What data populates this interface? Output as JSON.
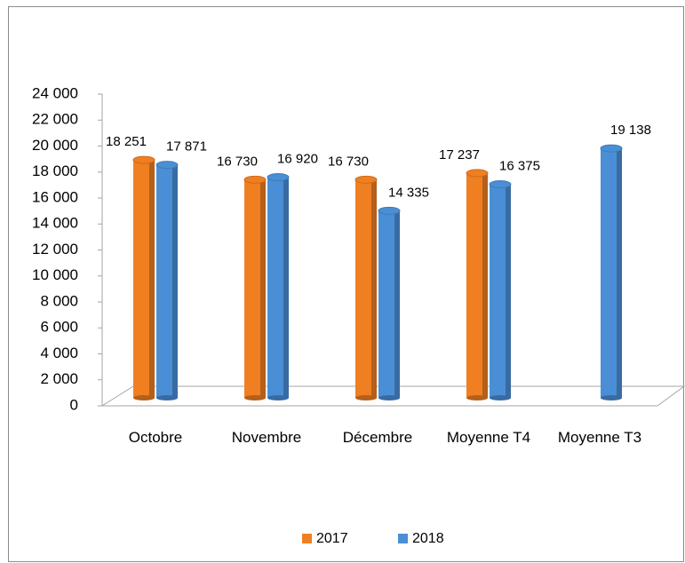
{
  "chart_data": {
    "type": "bar3d",
    "categories": [
      "Octobre",
      "Novembre",
      "Décembre",
      "Moyenne T4",
      "Moyenne T3"
    ],
    "series": [
      {
        "name": "2017",
        "color": "#f07f22",
        "values": [
          18251,
          16730,
          16730,
          17237,
          null
        ],
        "value_labels": [
          "18 251",
          "16 730",
          "16 730",
          "17 237",
          null
        ]
      },
      {
        "name": "2018",
        "color": "#4a8fd6",
        "values": [
          17871,
          16920,
          14335,
          16375,
          19138
        ],
        "value_labels": [
          "17 871",
          "16 920",
          "14 335",
          "16 375",
          "19 138"
        ]
      }
    ],
    "ylim": [
      0,
      24000
    ],
    "yticks": [
      0,
      {
        "value": 2000,
        "label": "2 000"
      },
      {
        "value": 4000,
        "label": "4 000"
      },
      {
        "value": 6000,
        "label": "6 000"
      },
      {
        "value": 8000,
        "label": "8 000"
      },
      {
        "value": 10000,
        "label": "10 000"
      },
      {
        "value": 12000,
        "label": "12 000"
      },
      {
        "value": 14000,
        "label": "14 000"
      },
      {
        "value": 16000,
        "label": "16 000"
      },
      {
        "value": 18000,
        "label": "18 000"
      },
      {
        "value": 20000,
        "label": "20 000"
      },
      {
        "value": 22000,
        "label": "22 000"
      },
      {
        "value": 24000,
        "label": "24 000"
      }
    ],
    "legend": "bottom"
  }
}
